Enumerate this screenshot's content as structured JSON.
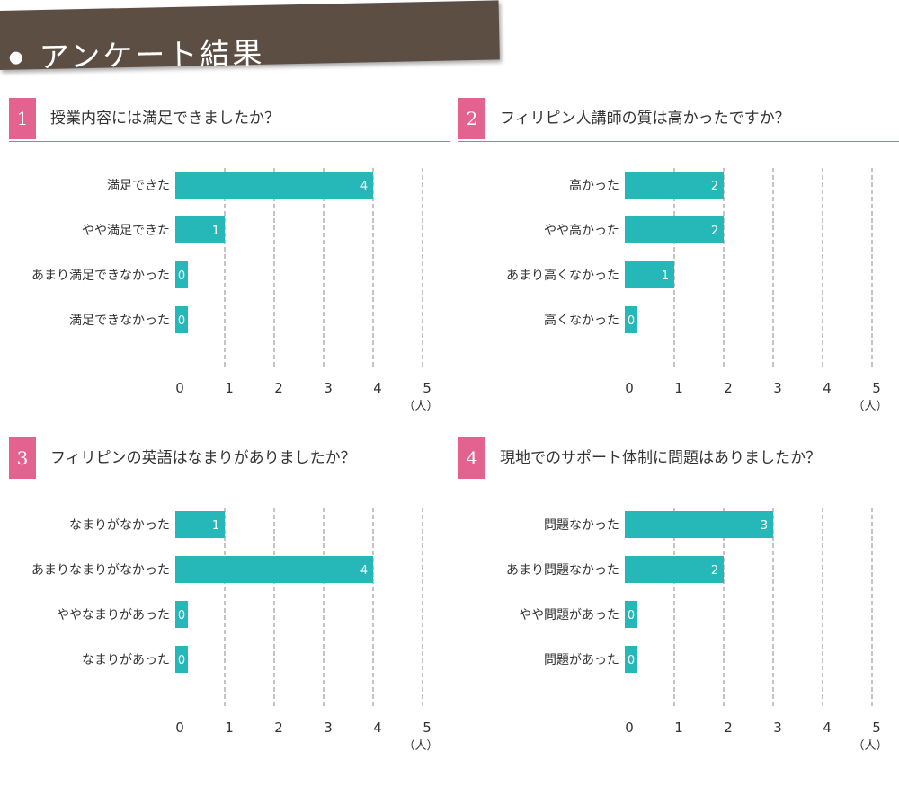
{
  "header": {
    "title": "アンケート結果"
  },
  "colors": {
    "bar": "#26b7b8",
    "accent": "#e3628f",
    "banner": "#5d4e44",
    "grid": "#8a8a8a"
  },
  "axis": {
    "ticks": [
      "0",
      "1",
      "2",
      "3",
      "4",
      "5"
    ],
    "unit": "（人）"
  },
  "chart_data": [
    {
      "type": "bar",
      "orientation": "horizontal",
      "number": "1",
      "title": "授業内容には満足できましたか？",
      "categories": [
        "満足できた",
        "やや満足できた",
        "あまり満足できなかった",
        "満足できなかった"
      ],
      "values": [
        4,
        1,
        0,
        0
      ],
      "xlim": [
        0,
        5
      ],
      "xlabel": "（人）",
      "grid": true
    },
    {
      "type": "bar",
      "orientation": "horizontal",
      "number": "2",
      "title": "フィリピン人講師の質は高かったですか？",
      "categories": [
        "高かった",
        "やや高かった",
        "あまり高くなかった",
        "高くなかった"
      ],
      "values": [
        2,
        2,
        1,
        0
      ],
      "xlim": [
        0,
        5
      ],
      "xlabel": "（人）",
      "grid": true
    },
    {
      "type": "bar",
      "orientation": "horizontal",
      "number": "3",
      "title": "フィリピンの英語はなまりがありましたか？",
      "categories": [
        "なまりがなかった",
        "あまりなまりがなかった",
        "ややなまりがあった",
        "なまりがあった"
      ],
      "values": [
        1,
        4,
        0,
        0
      ],
      "xlim": [
        0,
        5
      ],
      "xlabel": "（人）",
      "grid": true
    },
    {
      "type": "bar",
      "orientation": "horizontal",
      "number": "4",
      "title": "現地でのサポート体制に問題はありましたか？",
      "categories": [
        "問題なかった",
        "あまり問題なかった",
        "やや問題があった",
        "問題があった"
      ],
      "values": [
        3,
        2,
        0,
        0
      ],
      "xlim": [
        0,
        5
      ],
      "xlabel": "（人）",
      "grid": true
    }
  ]
}
